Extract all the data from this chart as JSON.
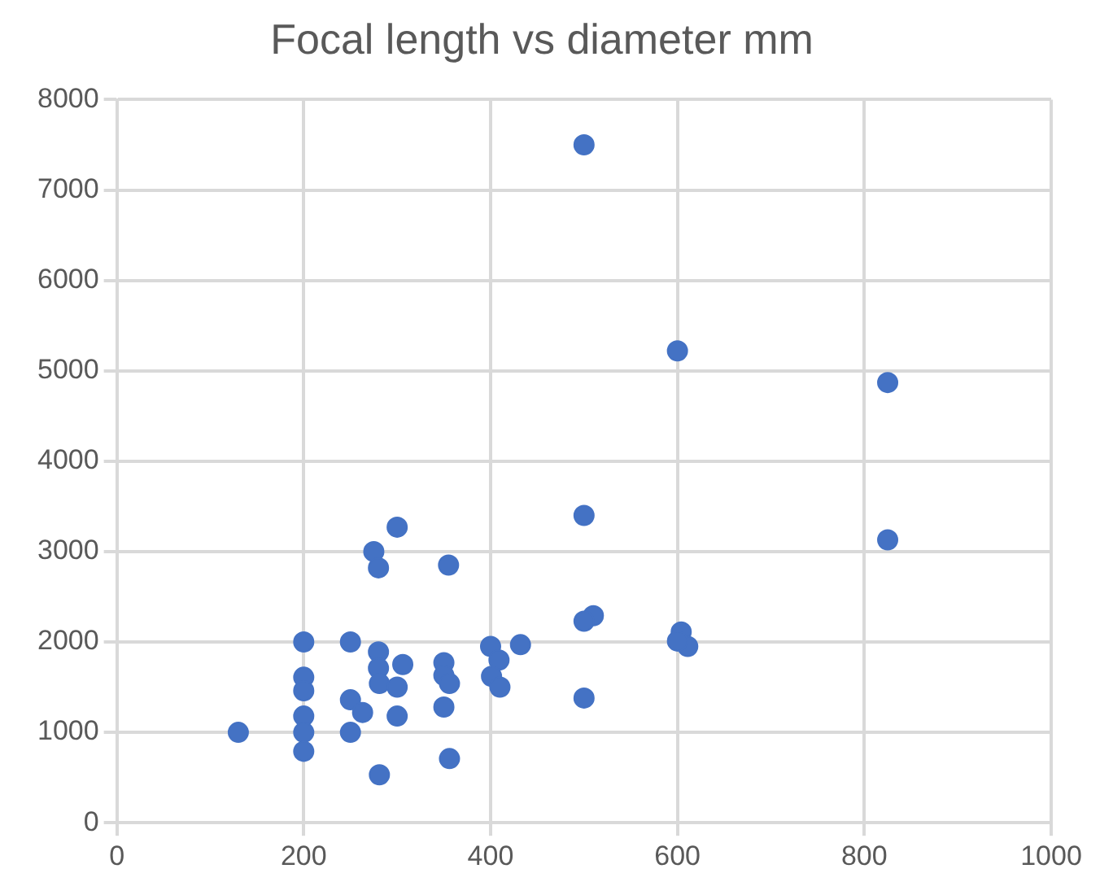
{
  "chart_data": {
    "type": "scatter",
    "title": "Focal length vs diameter mm",
    "x": [
      130,
      200,
      200,
      200,
      200,
      200,
      200,
      250,
      250,
      263,
      250,
      275,
      280,
      280,
      280,
      281,
      281,
      300,
      306,
      300,
      300,
      350,
      350,
      356,
      350,
      355,
      356,
      400,
      409,
      401,
      410,
      432,
      500,
      500,
      510,
      500,
      500,
      600,
      604,
      611,
      600,
      825,
      825
    ],
    "series": [
      {
        "color": "#4472c4",
        "values": [
          1000,
          2000,
          1610,
          1460,
          1180,
          1000,
          790,
          2000,
          1360,
          1220,
          1000,
          3000,
          2820,
          1890,
          1710,
          530,
          1540,
          3270,
          1750,
          1500,
          1180,
          1770,
          1630,
          1540,
          1280,
          2850,
          710,
          1950,
          1800,
          1620,
          1500,
          1970,
          7500,
          3400,
          2290,
          2230,
          1380,
          5220,
          2110,
          1950,
          2010,
          4870,
          3130
        ]
      }
    ],
    "xlim": [
      0,
      1000
    ],
    "xticks": [
      0,
      200,
      400,
      600,
      800,
      1000
    ],
    "ylim": [
      0,
      8000
    ],
    "yticks": [
      0,
      1000,
      2000,
      3000,
      4000,
      5000,
      6000,
      7000,
      8000
    ],
    "grid": true,
    "legend": false,
    "marker": "circle"
  }
}
